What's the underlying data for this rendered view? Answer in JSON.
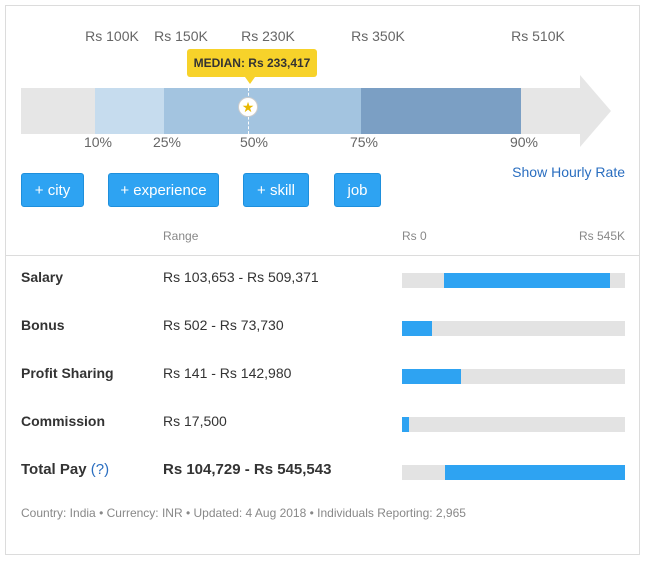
{
  "percentile_top_labels": [
    "Rs 100K",
    "Rs 150K",
    "Rs 230K",
    "Rs 350K",
    "Rs 510K"
  ],
  "percentile_bottom_labels": [
    "10%",
    "25%",
    "50%",
    "75%",
    "90%"
  ],
  "median": {
    "label": "MEDIAN: Rs 233,417"
  },
  "buttons": {
    "city": "+ city",
    "experience": "+ experience",
    "skill": "+ skill",
    "job": "job"
  },
  "hourly_link": "Show Hourly Rate",
  "table_header": {
    "range": "Range",
    "min": "Rs 0",
    "max": "Rs 545K"
  },
  "rows": [
    {
      "label": "Salary",
      "range": "Rs 103,653 - Rs 509,371",
      "min": 103653,
      "max": 509371
    },
    {
      "label": "Bonus",
      "range": "Rs 502 - Rs 73,730",
      "min": 502,
      "max": 73730
    },
    {
      "label": "Profit Sharing",
      "range": "Rs 141 - Rs 142,980",
      "min": 141,
      "max": 142980
    },
    {
      "label": "Commission",
      "range": "Rs 17,500",
      "min": 0,
      "max": 17500
    },
    {
      "label": "Total Pay",
      "help": "(?)",
      "range": "Rs 104,729 - Rs 545,543",
      "min": 104729,
      "max": 545543
    }
  ],
  "scale_max": 545000,
  "footer": {
    "country": "Country: India",
    "currency": "Currency: INR",
    "updated": "Updated: 4 Aug 2018",
    "reporting": "Individuals Reporting: 2,965"
  },
  "colors": {
    "accent": "#2ea3f2",
    "range_light": "#c6dcee",
    "range_mid": "#a3c4e0",
    "range_dark": "#7b9fc4",
    "median_badge": "#f7d22a",
    "track": "#e3e3e3",
    "link": "#2a6ec0"
  }
}
